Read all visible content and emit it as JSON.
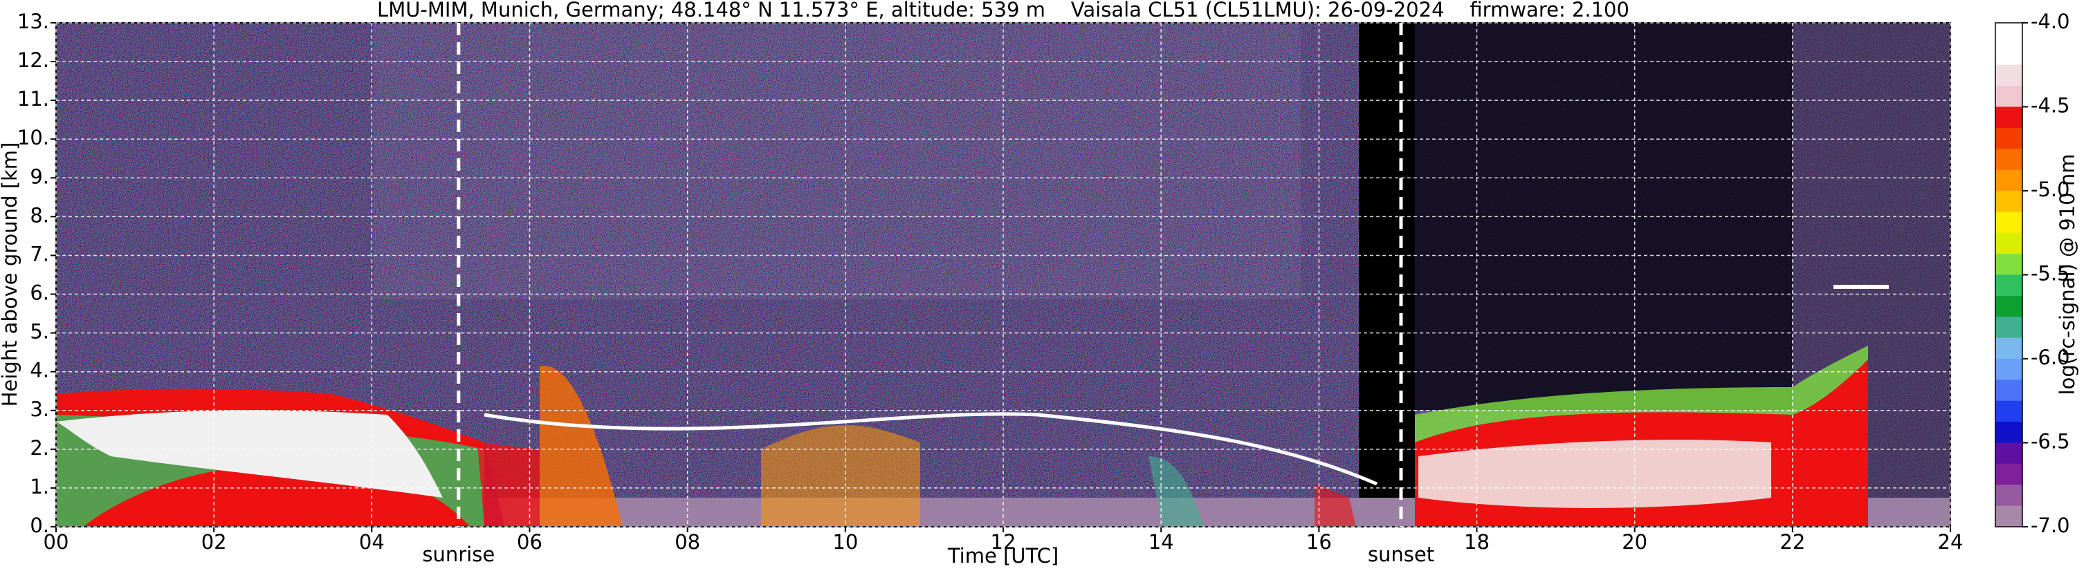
{
  "chart_data": {
    "type": "heatmap",
    "title": "LMU-MIM, Munich, Germany; 48.148° N 11.573° E, altitude: 539 m    Vaisala CL51 (CL51LMU): 26-09-2024    firmware: 2.100",
    "xlabel": "Time [UTC]",
    "ylabel": "Height above ground [km]",
    "xlim": [
      0,
      24
    ],
    "xticks": [
      {
        "value": 0,
        "label": "00"
      },
      {
        "value": 2,
        "label": "02"
      },
      {
        "value": 4,
        "label": "04"
      },
      {
        "value": 6,
        "label": "06"
      },
      {
        "value": 8,
        "label": "08"
      },
      10,
      12,
      14,
      16,
      18,
      20,
      22,
      24
    ],
    "ylim": [
      0,
      13
    ],
    "yticks": [
      {
        "value": 0,
        "label": "0."
      },
      {
        "value": 1,
        "label": "1."
      },
      {
        "value": 2,
        "label": "2."
      },
      {
        "value": 3,
        "label": "3."
      },
      {
        "value": 4,
        "label": "4."
      },
      {
        "value": 5,
        "label": "5."
      },
      {
        "value": 6,
        "label": "6."
      },
      {
        "value": 7,
        "label": "7."
      },
      {
        "value": 8,
        "label": "8."
      },
      {
        "value": 9,
        "label": "9."
      },
      {
        "value": 10,
        "label": "10."
      },
      {
        "value": 11,
        "label": "11."
      },
      {
        "value": 12,
        "label": "12."
      },
      {
        "value": 13,
        "label": "13."
      }
    ],
    "grid": true,
    "colorbar_label": "log(rc-signal) @ 910 nm",
    "clim": [
      -7,
      -4
    ],
    "colorbar_ticks": [
      {
        "value": -4,
        "label": "-4.0"
      },
      {
        "value": -4.5,
        "label": "-4.5"
      },
      {
        "value": -5,
        "label": "-5.0"
      },
      {
        "value": -5.5,
        "label": "-5.5"
      },
      {
        "value": -6,
        "label": "-6.0"
      },
      {
        "value": -6.5,
        "label": "-6.5"
      },
      {
        "value": -7,
        "label": "-7.0"
      }
    ],
    "colormap": [
      "#ffffff",
      "#ffffff",
      "#f2dde2",
      "#f0c8d0",
      "#ee1111",
      "#f53d00",
      "#fa6e00",
      "#ff9800",
      "#ffc000",
      "#fff000",
      "#d8f000",
      "#80e040",
      "#30c060",
      "#10a030",
      "#40b090",
      "#7ab8f0",
      "#6ca0f8",
      "#4d74f8",
      "#2040f0",
      "#1010c8",
      "#6010a0",
      "#80209a",
      "#955aa0",
      "#a888a8"
    ],
    "annotations": [
      {
        "text": "sunrise",
        "x": 5.1
      },
      {
        "text": "sunset",
        "x": 17.04
      }
    ]
  }
}
